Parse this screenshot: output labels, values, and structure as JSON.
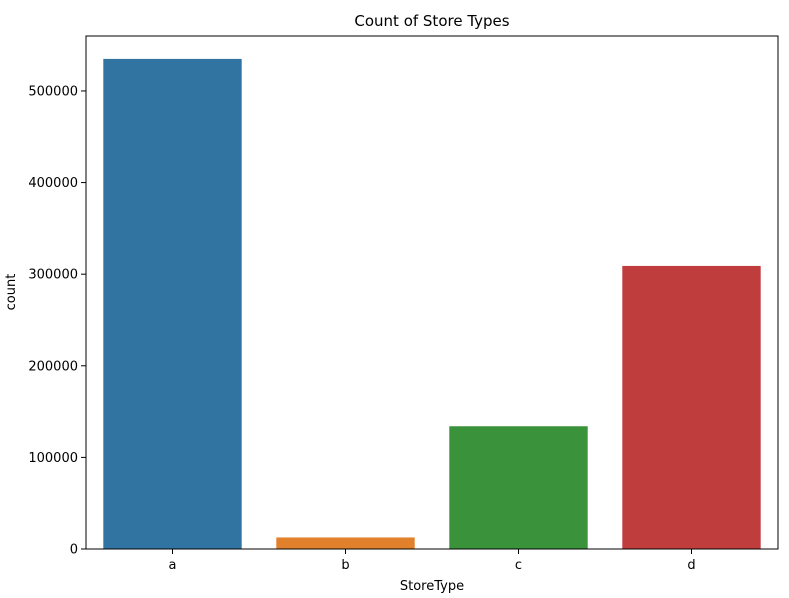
{
  "chart_data": {
    "type": "bar",
    "title": "Count of Store Types",
    "xlabel": "StoreType",
    "ylabel": "count",
    "categories": [
      "a",
      "b",
      "c",
      "d"
    ],
    "values": [
      535000,
      12600,
      134000,
      309000
    ],
    "colors": [
      "#3274a1",
      "#e1812c",
      "#3a923a",
      "#c03d3e"
    ],
    "ylim": [
      0,
      560000
    ],
    "yticks": [
      0,
      100000,
      200000,
      300000,
      400000,
      500000
    ],
    "ytick_labels": [
      "0",
      "100000",
      "200000",
      "300000",
      "400000",
      "500000"
    ],
    "grid": false,
    "legend": "none"
  }
}
